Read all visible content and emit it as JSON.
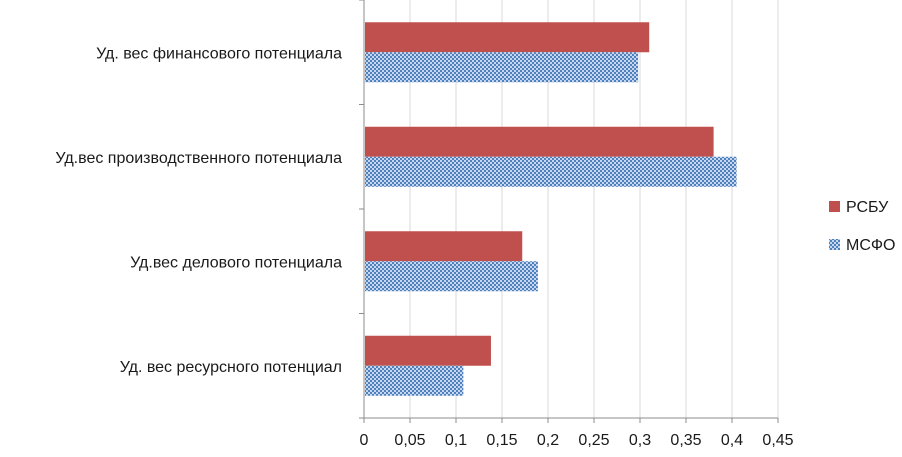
{
  "chart_data": {
    "type": "bar",
    "orientation": "horizontal",
    "categories": [
      "Уд. вес финансового потенциала",
      "Уд.вес производственного потенциала",
      "Уд.вес делового потенциала",
      "Уд. вес ресурсного потенциал"
    ],
    "series": [
      {
        "name": "РСБУ",
        "values": [
          0.31,
          0.38,
          0.172,
          0.138
        ],
        "color": "#c0504d",
        "pattern": "solid"
      },
      {
        "name": "МСФО",
        "values": [
          0.298,
          0.405,
          0.189,
          0.108
        ],
        "color": "#4f81bd",
        "pattern": "checkered"
      }
    ],
    "xlim": [
      0,
      0.45
    ],
    "xticks": [
      0,
      0.05,
      0.1,
      0.15,
      0.2,
      0.25,
      0.3,
      0.35,
      0.4,
      0.45
    ],
    "xtick_labels": [
      "0",
      "0,05",
      "0,1",
      "0,15",
      "0,2",
      "0,25",
      "0,3",
      "0,35",
      "0,4",
      "0,45"
    ],
    "grid": "vertical",
    "legend": "right"
  }
}
